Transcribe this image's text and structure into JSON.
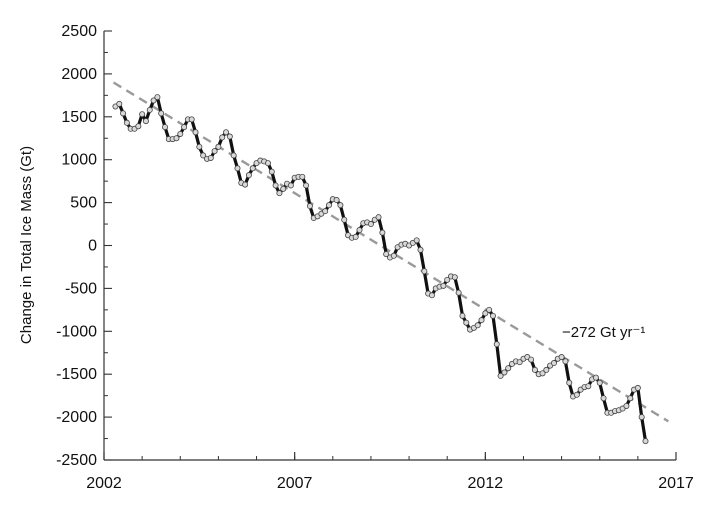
{
  "chart_data": {
    "type": "line",
    "title": "",
    "xlabel": "",
    "ylabel": "Change in Total Ice Mass (Gt)",
    "xlim": [
      2002,
      2017
    ],
    "ylim": [
      -2500,
      2500
    ],
    "x_ticks": [
      2002,
      2007,
      2012,
      2017
    ],
    "y_ticks": [
      2500,
      2000,
      1500,
      1000,
      500,
      0,
      -500,
      -1000,
      -1500,
      -2000,
      -2500
    ],
    "grid": false,
    "legend": "none",
    "annotation": "−272 Gt yr⁻¹",
    "trend": {
      "slope": -272,
      "x": [
        2002.25,
        2016.8
      ],
      "y": [
        1900,
        -2050
      ]
    },
    "series": [
      {
        "points": [
          [
            2002.3,
            1620
          ],
          [
            2002.4,
            1650
          ],
          [
            2002.5,
            1540
          ],
          [
            2002.6,
            1430
          ],
          [
            2002.7,
            1360
          ],
          [
            2002.8,
            1360
          ],
          [
            2002.9,
            1390
          ],
          [
            2003.0,
            1530
          ],
          [
            2003.1,
            1450
          ],
          [
            2003.2,
            1580
          ],
          [
            2003.3,
            1690
          ],
          [
            2003.4,
            1730
          ],
          [
            2003.5,
            1540
          ],
          [
            2003.6,
            1380
          ],
          [
            2003.7,
            1240
          ],
          [
            2003.8,
            1240
          ],
          [
            2003.9,
            1250
          ],
          [
            2004.0,
            1300
          ],
          [
            2004.1,
            1380
          ],
          [
            2004.2,
            1470
          ],
          [
            2004.3,
            1470
          ],
          [
            2004.4,
            1320
          ],
          [
            2004.5,
            1150
          ],
          [
            2004.6,
            1050
          ],
          [
            2004.7,
            1010
          ],
          [
            2004.8,
            1020
          ],
          [
            2004.9,
            1100
          ],
          [
            2005.0,
            1150
          ],
          [
            2005.1,
            1260
          ],
          [
            2005.2,
            1320
          ],
          [
            2005.3,
            1270
          ],
          [
            2005.4,
            1050
          ],
          [
            2005.5,
            900
          ],
          [
            2005.6,
            730
          ],
          [
            2005.7,
            710
          ],
          [
            2005.8,
            820
          ],
          [
            2005.9,
            900
          ],
          [
            2006.0,
            960
          ],
          [
            2006.1,
            990
          ],
          [
            2006.2,
            980
          ],
          [
            2006.3,
            960
          ],
          [
            2006.4,
            860
          ],
          [
            2006.5,
            700
          ],
          [
            2006.6,
            610
          ],
          [
            2006.7,
            660
          ],
          [
            2006.8,
            720
          ],
          [
            2006.9,
            700
          ],
          [
            2007.0,
            790
          ],
          [
            2007.1,
            800
          ],
          [
            2007.2,
            800
          ],
          [
            2007.3,
            700
          ],
          [
            2007.4,
            460
          ],
          [
            2007.5,
            320
          ],
          [
            2007.6,
            340
          ],
          [
            2007.7,
            370
          ],
          [
            2007.8,
            400
          ],
          [
            2007.9,
            470
          ],
          [
            2008.0,
            540
          ],
          [
            2008.1,
            530
          ],
          [
            2008.2,
            470
          ],
          [
            2008.3,
            300
          ],
          [
            2008.4,
            120
          ],
          [
            2008.5,
            90
          ],
          [
            2008.6,
            100
          ],
          [
            2008.7,
            180
          ],
          [
            2008.8,
            260
          ],
          [
            2008.9,
            270
          ],
          [
            2009.0,
            250
          ],
          [
            2009.1,
            300
          ],
          [
            2009.2,
            330
          ],
          [
            2009.3,
            150
          ],
          [
            2009.4,
            -100
          ],
          [
            2009.5,
            -140
          ],
          [
            2009.6,
            -120
          ],
          [
            2009.7,
            -20
          ],
          [
            2009.8,
            10
          ],
          [
            2009.9,
            20
          ],
          [
            2010.0,
            0
          ],
          [
            2010.1,
            30
          ],
          [
            2010.2,
            60
          ],
          [
            2010.3,
            -50
          ],
          [
            2010.4,
            -300
          ],
          [
            2010.5,
            -560
          ],
          [
            2010.6,
            -580
          ],
          [
            2010.7,
            -500
          ],
          [
            2010.8,
            -480
          ],
          [
            2010.9,
            -470
          ],
          [
            2011.0,
            -400
          ],
          [
            2011.1,
            -360
          ],
          [
            2011.2,
            -370
          ],
          [
            2011.3,
            -550
          ],
          [
            2011.4,
            -820
          ],
          [
            2011.5,
            -900
          ],
          [
            2011.6,
            -980
          ],
          [
            2011.7,
            -960
          ],
          [
            2011.8,
            -930
          ],
          [
            2011.9,
            -870
          ],
          [
            2012.0,
            -790
          ],
          [
            2012.1,
            -750
          ],
          [
            2012.2,
            -820
          ],
          [
            2012.3,
            -1150
          ],
          [
            2012.4,
            -1520
          ],
          [
            2012.5,
            -1480
          ],
          [
            2012.6,
            -1430
          ],
          [
            2012.7,
            -1380
          ],
          [
            2012.8,
            -1350
          ],
          [
            2012.9,
            -1360
          ],
          [
            2013.0,
            -1320
          ],
          [
            2013.1,
            -1300
          ],
          [
            2013.2,
            -1330
          ],
          [
            2013.3,
            -1450
          ],
          [
            2013.4,
            -1500
          ],
          [
            2013.5,
            -1490
          ],
          [
            2013.6,
            -1450
          ],
          [
            2013.7,
            -1400
          ],
          [
            2013.8,
            -1370
          ],
          [
            2013.9,
            -1320
          ],
          [
            2014.0,
            -1300
          ],
          [
            2014.1,
            -1350
          ],
          [
            2014.2,
            -1600
          ],
          [
            2014.3,
            -1760
          ],
          [
            2014.4,
            -1740
          ],
          [
            2014.5,
            -1680
          ],
          [
            2014.6,
            -1650
          ],
          [
            2014.7,
            -1640
          ],
          [
            2014.8,
            -1560
          ],
          [
            2014.9,
            -1540
          ],
          [
            2015.0,
            -1600
          ],
          [
            2015.1,
            -1780
          ],
          [
            2015.2,
            -1950
          ],
          [
            2015.3,
            -1950
          ],
          [
            2015.4,
            -1930
          ],
          [
            2015.5,
            -1920
          ],
          [
            2015.6,
            -1900
          ],
          [
            2015.7,
            -1870
          ],
          [
            2015.8,
            -1780
          ],
          [
            2015.9,
            -1680
          ],
          [
            2016.0,
            -1660
          ],
          [
            2016.1,
            -2000
          ],
          [
            2016.2,
            -2280
          ]
        ]
      }
    ]
  }
}
